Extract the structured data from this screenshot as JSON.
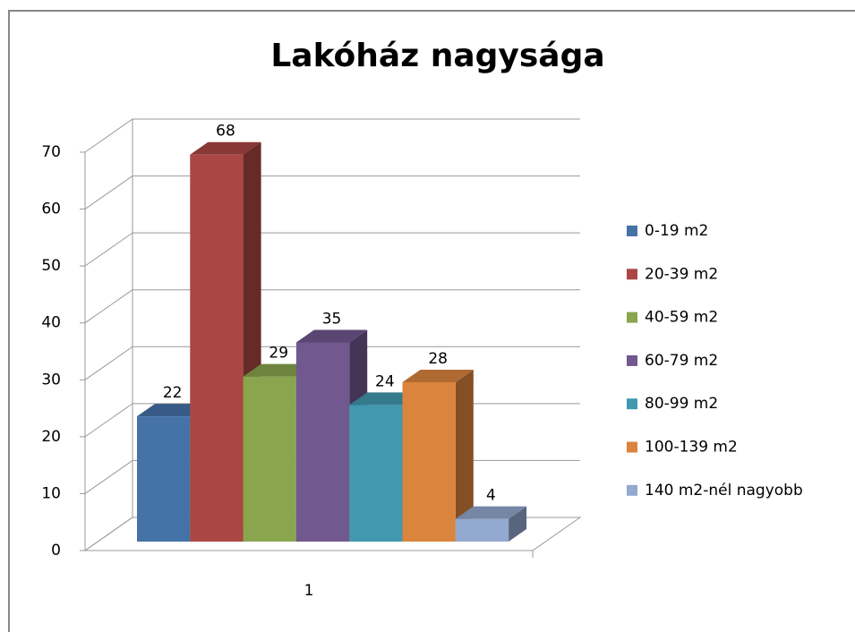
{
  "chart_data": {
    "type": "bar3d",
    "title": "Lakóház nagysága",
    "categories": [
      "1"
    ],
    "series": [
      {
        "name": "0-19 m2",
        "color": "#4572a7",
        "values": [
          22
        ]
      },
      {
        "name": "20-39 m2",
        "color": "#aa4643",
        "values": [
          68
        ]
      },
      {
        "name": "40-59 m2",
        "color": "#89a54e",
        "values": [
          29
        ]
      },
      {
        "name": "60-79 m2",
        "color": "#71588f",
        "values": [
          35
        ]
      },
      {
        "name": "80-99 m2",
        "color": "#4198af",
        "values": [
          24
        ]
      },
      {
        "name": "100-139 m2",
        "color": "#db843d",
        "values": [
          28
        ]
      },
      {
        "name": "140 m2-nél nagyobb",
        "color": "#93a9cf",
        "values": [
          4
        ]
      }
    ],
    "ylim": [
      0,
      70
    ],
    "yticks": [
      0,
      10,
      20,
      30,
      40,
      50,
      60,
      70
    ],
    "grid": true,
    "legend": "right"
  }
}
